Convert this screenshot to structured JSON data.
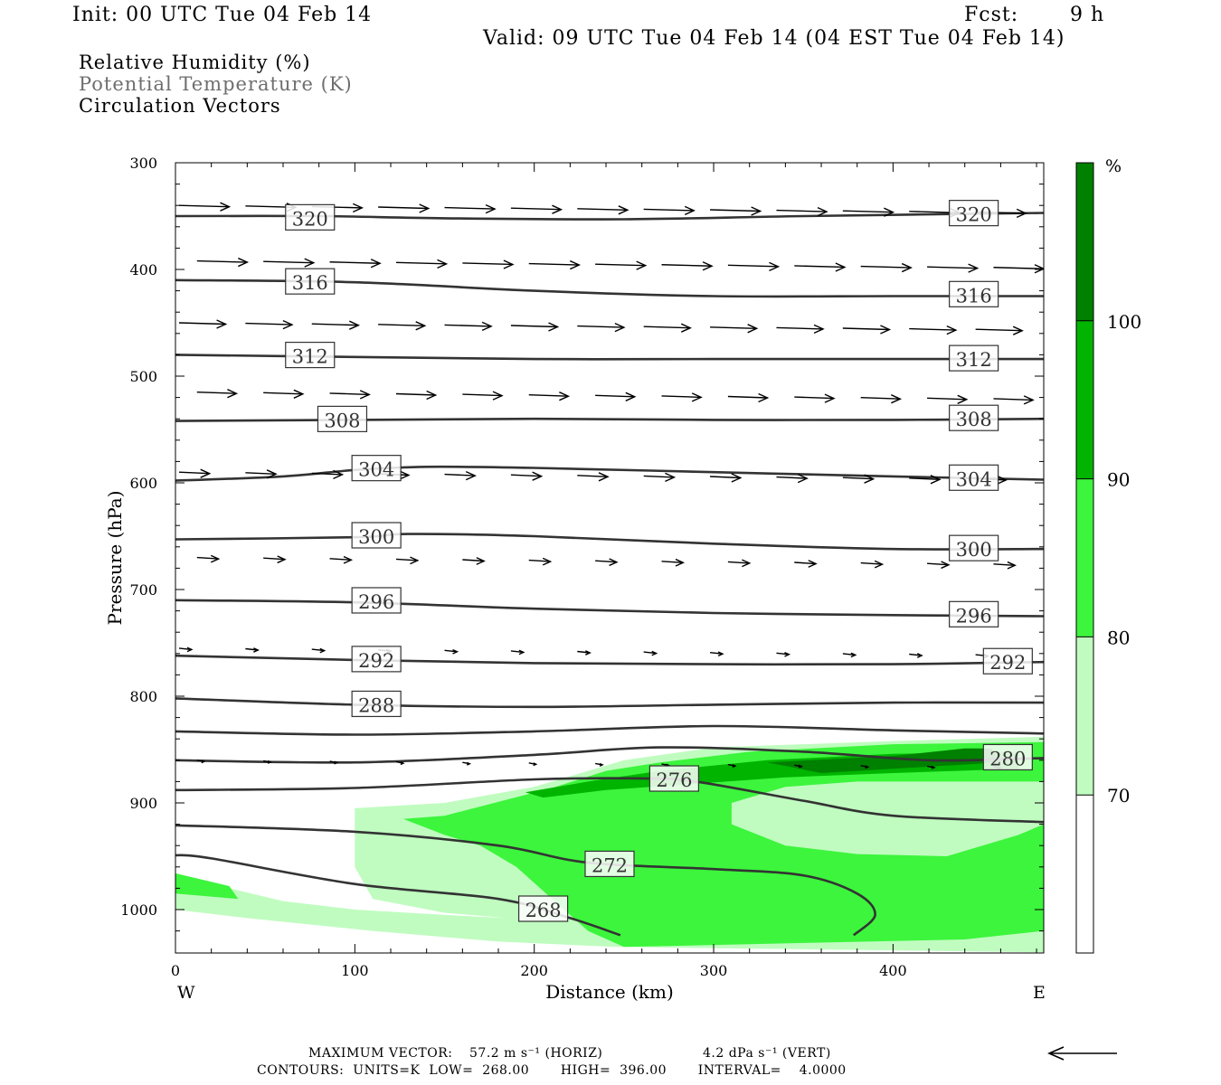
{
  "header": {
    "init": "Init: 00 UTC Tue 04 Feb 14",
    "fcst_label": "Fcst:",
    "fcst_value": "9 h",
    "valid": "Valid: 09 UTC Tue 04 Feb 14 (04 EST Tue 04 Feb 14)"
  },
  "fields": {
    "rh": "Relative Humidity (%)",
    "theta": "Potential Temperature (K)",
    "vectors": "Circulation Vectors"
  },
  "footer": {
    "max_vector_label": "MAXIMUM VECTOR:",
    "max_vector_horiz": "57.2 m s⁻¹ (HORIZ)",
    "max_vector_vert": "4.2 dPa s⁻¹ (VERT)",
    "contours": "CONTOURS:  UNITS=K  LOW=  268.00       HIGH=  396.00       INTERVAL=    4.0000"
  },
  "colors": {
    "rh_70": "#c0fcc0",
    "rh_80": "#3cf53c",
    "rh_90": "#00b400",
    "rh_100": "#008000",
    "contour": "#333333"
  },
  "chart_data": {
    "type": "cross-section",
    "xlabel": "Distance (km)",
    "ylabel": "Pressure (hPa)",
    "xlim": [
      0,
      484
    ],
    "ylim": [
      1040,
      300
    ],
    "x_ticks": [
      0,
      100,
      200,
      300,
      400
    ],
    "y_ticks": [
      300,
      400,
      500,
      600,
      700,
      800,
      900,
      1000
    ],
    "x_end_labels": {
      "left": "W",
      "right": "E"
    },
    "colorbar": {
      "unit": "%",
      "levels": [
        70,
        80,
        90,
        100
      ]
    },
    "isentropes": [
      {
        "theta": 320,
        "points": [
          [
            0,
            350
          ],
          [
            80,
            350
          ],
          [
            150,
            352
          ],
          [
            250,
            353
          ],
          [
            350,
            350
          ],
          [
            484,
            347
          ]
        ],
        "label_at": [
          [
            75,
            352
          ],
          [
            445,
            348
          ]
        ]
      },
      {
        "theta": 316,
        "points": [
          [
            0,
            410
          ],
          [
            100,
            412
          ],
          [
            200,
            420
          ],
          [
            300,
            425
          ],
          [
            400,
            425
          ],
          [
            484,
            425
          ]
        ],
        "label_at": [
          [
            75,
            412
          ],
          [
            445,
            424
          ]
        ]
      },
      {
        "theta": 312,
        "points": [
          [
            0,
            480
          ],
          [
            100,
            482
          ],
          [
            200,
            484
          ],
          [
            300,
            484
          ],
          [
            400,
            484
          ],
          [
            484,
            484
          ]
        ],
        "label_at": [
          [
            75,
            481
          ],
          [
            445,
            484
          ]
        ]
      },
      {
        "theta": 308,
        "points": [
          [
            0,
            542
          ],
          [
            100,
            541
          ],
          [
            200,
            540
          ],
          [
            300,
            541
          ],
          [
            400,
            541
          ],
          [
            484,
            540
          ]
        ],
        "label_at": [
          [
            93,
            541
          ],
          [
            445,
            540
          ]
        ]
      },
      {
        "theta": 304,
        "points": [
          [
            0,
            598
          ],
          [
            60,
            594
          ],
          [
            100,
            588
          ],
          [
            140,
            585
          ],
          [
            200,
            586
          ],
          [
            300,
            590
          ],
          [
            400,
            594
          ],
          [
            484,
            597
          ]
        ],
        "label_at": [
          [
            112,
            587
          ],
          [
            445,
            596
          ]
        ]
      },
      {
        "theta": 300,
        "points": [
          [
            0,
            653
          ],
          [
            100,
            651
          ],
          [
            130,
            648
          ],
          [
            200,
            650
          ],
          [
            300,
            657
          ],
          [
            400,
            662
          ],
          [
            484,
            662
          ]
        ],
        "label_at": [
          [
            112,
            650
          ],
          [
            445,
            662
          ]
        ]
      },
      {
        "theta": 296,
        "points": [
          [
            0,
            710
          ],
          [
            100,
            712
          ],
          [
            200,
            718
          ],
          [
            300,
            722
          ],
          [
            400,
            724
          ],
          [
            484,
            725
          ]
        ],
        "label_at": [
          [
            112,
            711
          ],
          [
            445,
            724
          ]
        ]
      },
      {
        "theta": 292,
        "points": [
          [
            0,
            762
          ],
          [
            100,
            766
          ],
          [
            200,
            769
          ],
          [
            300,
            770
          ],
          [
            400,
            770
          ],
          [
            484,
            768
          ]
        ],
        "label_at": [
          [
            112,
            766
          ],
          [
            464,
            768
          ]
        ]
      },
      {
        "theta": 288,
        "points": [
          [
            0,
            802
          ],
          [
            100,
            808
          ],
          [
            200,
            810
          ],
          [
            300,
            808
          ],
          [
            400,
            806
          ],
          [
            484,
            806
          ]
        ],
        "label_at": [
          [
            112,
            808
          ]
        ]
      },
      {
        "theta": 284,
        "points": [
          [
            0,
            833
          ],
          [
            100,
            836
          ],
          [
            200,
            833
          ],
          [
            300,
            828
          ],
          [
            400,
            832
          ],
          [
            484,
            835
          ]
        ],
        "label_at": []
      },
      {
        "theta": 280,
        "points": [
          [
            0,
            860
          ],
          [
            100,
            862
          ],
          [
            200,
            855
          ],
          [
            270,
            848
          ],
          [
            350,
            852
          ],
          [
            420,
            860
          ],
          [
            484,
            858
          ]
        ],
        "label_at": [
          [
            464,
            858
          ]
        ]
      },
      {
        "theta": 276,
        "points": [
          [
            0,
            888
          ],
          [
            100,
            886
          ],
          [
            200,
            878
          ],
          [
            260,
            877
          ],
          [
            290,
            880
          ],
          [
            350,
            898
          ],
          [
            400,
            912
          ],
          [
            484,
            918
          ]
        ],
        "label_at": [
          [
            278,
            878
          ]
        ]
      },
      {
        "theta": 272,
        "points": [
          [
            0,
            921
          ],
          [
            100,
            927
          ],
          [
            180,
            940
          ],
          [
            230,
            956
          ],
          [
            300,
            962
          ],
          [
            350,
            968
          ],
          [
            380,
            985
          ],
          [
            390,
            1005
          ],
          [
            378,
            1024
          ]
        ],
        "label_at": [
          [
            242,
            958
          ]
        ]
      },
      {
        "theta": 268,
        "points": [
          [
            0,
            949
          ],
          [
            20,
            952
          ],
          [
            100,
            976
          ],
          [
            180,
            990
          ],
          [
            220,
            1008
          ],
          [
            248,
            1024
          ]
        ],
        "label_at": [
          [
            205,
            1000
          ]
        ]
      }
    ],
    "rh_regions": [
      {
        "level": 70,
        "polygon": [
          [
            0,
            966
          ],
          [
            30,
            980
          ],
          [
            60,
            992
          ],
          [
            100,
            1000
          ],
          [
            150,
            1005
          ],
          [
            185,
            1008
          ],
          [
            150,
            1003
          ],
          [
            110,
            990
          ],
          [
            100,
            960
          ],
          [
            100,
            905
          ],
          [
            150,
            900
          ],
          [
            200,
            885
          ],
          [
            250,
            860
          ],
          [
            300,
            848
          ],
          [
            400,
            842
          ],
          [
            484,
            838
          ],
          [
            484,
            1040
          ],
          [
            245,
            1035
          ],
          [
            180,
            1030
          ],
          [
            110,
            1020
          ],
          [
            40,
            1008
          ],
          [
            0,
            1000
          ]
        ]
      },
      {
        "level": 80,
        "polygon": [
          [
            0,
            966
          ],
          [
            30,
            978
          ],
          [
            35,
            990
          ],
          [
            0,
            985
          ]
        ]
      },
      {
        "level": 80,
        "polygon": [
          [
            127,
            915
          ],
          [
            150,
            912
          ],
          [
            210,
            886
          ],
          [
            240,
            870
          ],
          [
            270,
            862
          ],
          [
            320,
            852
          ],
          [
            400,
            845
          ],
          [
            484,
            843
          ],
          [
            484,
            880
          ],
          [
            380,
            880
          ],
          [
            340,
            885
          ],
          [
            310,
            900
          ],
          [
            310,
            920
          ],
          [
            340,
            940
          ],
          [
            380,
            948
          ],
          [
            430,
            950
          ],
          [
            470,
            930
          ],
          [
            484,
            920
          ],
          [
            484,
            1020
          ],
          [
            440,
            1028
          ],
          [
            250,
            1035
          ],
          [
            230,
            1020
          ],
          [
            210,
            990
          ],
          [
            190,
            960
          ],
          [
            170,
            940
          ],
          [
            150,
            930
          ]
        ]
      },
      {
        "level": 90,
        "polygon": [
          [
            195,
            890
          ],
          [
            230,
            880
          ],
          [
            270,
            870
          ],
          [
            330,
            860
          ],
          [
            400,
            854
          ],
          [
            470,
            852
          ],
          [
            470,
            868
          ],
          [
            400,
            872
          ],
          [
            340,
            876
          ],
          [
            290,
            882
          ],
          [
            240,
            888
          ],
          [
            205,
            895
          ]
        ]
      },
      {
        "level": 100,
        "polygon": [
          [
            330,
            862
          ],
          [
            400,
            856
          ],
          [
            440,
            849
          ],
          [
            455,
            849
          ],
          [
            460,
            862
          ],
          [
            420,
            866
          ],
          [
            360,
            872
          ]
        ]
      }
    ],
    "vectors_description": "circulation vectors shown as arrows; max horizontal 57.2 m/s, max vertical 4.2 dPa/s",
    "vector_rows": [
      {
        "p": 340,
        "len_km": 28
      },
      {
        "p": 392,
        "len_km": 28
      },
      {
        "p": 450,
        "len_km": 26
      },
      {
        "p": 515,
        "len_km": 22
      },
      {
        "p": 590,
        "len_km": 17
      },
      {
        "p": 670,
        "len_km": 12
      },
      {
        "p": 755,
        "len_km": 7
      },
      {
        "p": 860,
        "len_km": 4
      }
    ]
  }
}
